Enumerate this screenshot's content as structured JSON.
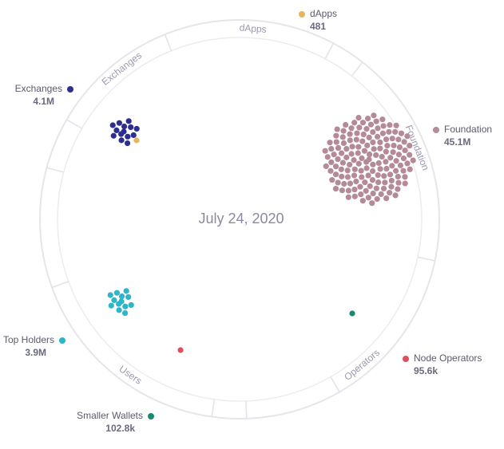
{
  "chart_data": {
    "type": "dot-cluster",
    "title": "July 24, 2020",
    "segments": [
      "dApps",
      "Exchanges",
      "Foundation",
      "Users",
      "Operators"
    ],
    "series": [
      {
        "name": "dApps",
        "color": "#e8b45e",
        "values": [
          481
        ],
        "value_labels": [
          "481"
        ]
      },
      {
        "name": "Exchanges",
        "color": "#2e2f8c",
        "values": [
          4100000
        ],
        "value_labels": [
          "4.1M"
        ]
      },
      {
        "name": "Foundation",
        "color": "#b48a99",
        "values": [
          45100000
        ],
        "value_labels": [
          "45.1M"
        ]
      },
      {
        "name": "Top Holders",
        "color": "#2bb6c9",
        "values": [
          3900000
        ],
        "value_labels": [
          "3.9M"
        ]
      },
      {
        "name": "Node Operators",
        "color": "#e0505c",
        "values": [
          95600
        ],
        "value_labels": [
          "95.6k"
        ]
      },
      {
        "name": "Smaller Wallets",
        "color": "#178a70",
        "values": [
          102800
        ],
        "value_labels": [
          "102.8k"
        ]
      }
    ]
  }
}
